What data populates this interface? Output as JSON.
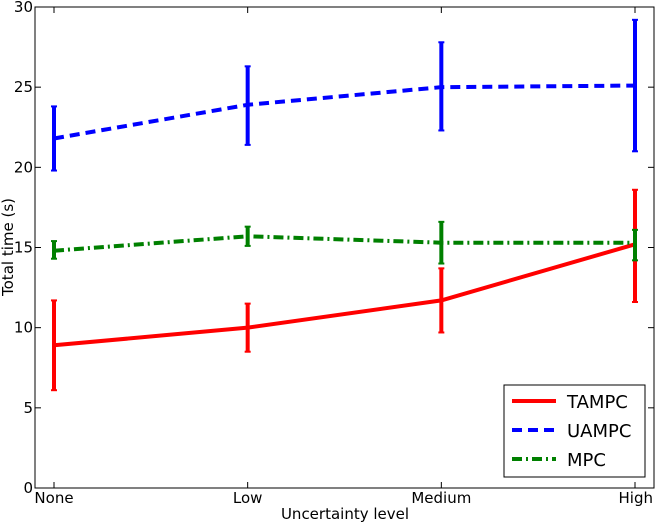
{
  "chart_data": {
    "type": "line",
    "title": "",
    "xlabel": "Uncertainty level",
    "ylabel": "Total time (s)",
    "categories": [
      "None",
      "Low",
      "Medium",
      "High"
    ],
    "ylim": [
      0,
      30
    ],
    "yticks": [
      0,
      5,
      10,
      15,
      20,
      25,
      30
    ],
    "grid": false,
    "legend_position": "lower-right",
    "series": [
      {
        "name": "TAMPC",
        "color": "#ff0000",
        "style": "solid",
        "values": [
          8.9,
          10.0,
          11.7,
          15.2
        ],
        "err_low": [
          6.1,
          8.5,
          9.7,
          11.6
        ],
        "err_high": [
          11.7,
          11.5,
          13.7,
          18.6
        ]
      },
      {
        "name": "UAMPC",
        "color": "#0000ff",
        "style": "dashed",
        "values": [
          21.8,
          23.9,
          25.0,
          25.1
        ],
        "err_low": [
          19.8,
          21.4,
          22.3,
          21.0
        ],
        "err_high": [
          23.8,
          26.3,
          27.8,
          29.2
        ]
      },
      {
        "name": "MPC",
        "color": "#008000",
        "style": "dashdot",
        "values": [
          14.8,
          15.7,
          15.3,
          15.3
        ],
        "err_low": [
          14.3,
          15.1,
          14.0,
          14.2
        ],
        "err_high": [
          15.4,
          16.3,
          16.6,
          16.1
        ]
      }
    ]
  }
}
